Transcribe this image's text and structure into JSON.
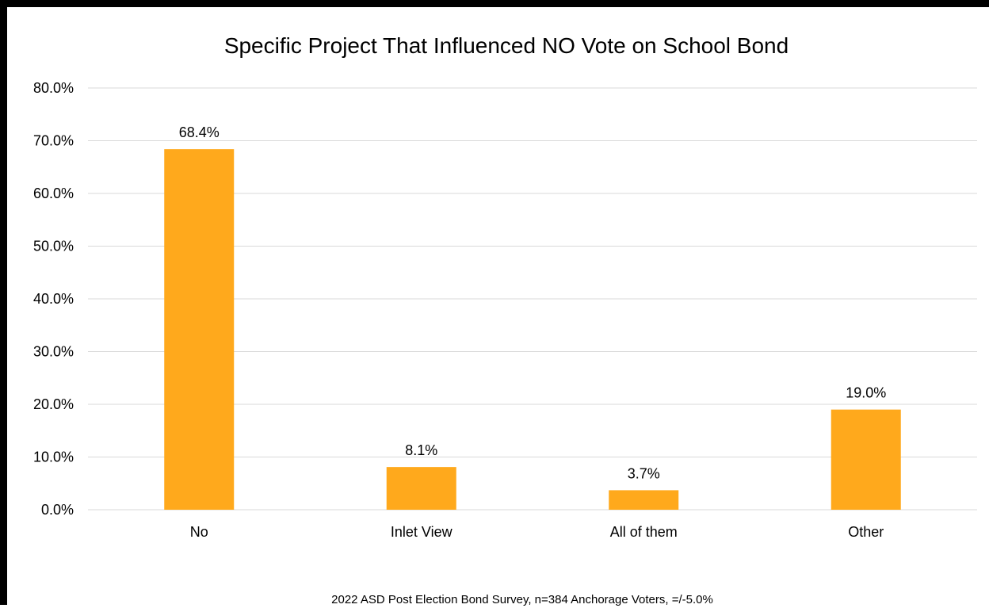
{
  "chart_data": {
    "type": "bar",
    "title": "Specific Project That Influenced NO Vote on School Bond",
    "categories": [
      "No",
      "Inlet View",
      "All of them",
      "Other"
    ],
    "values": [
      68.4,
      8.1,
      3.7,
      19.0
    ],
    "data_labels": [
      "68.4%",
      "8.1%",
      "3.7%",
      "19.0%"
    ],
    "y_ticks": [
      "0.0%",
      "10.0%",
      "20.0%",
      "30.0%",
      "40.0%",
      "50.0%",
      "60.0%",
      "70.0%",
      "80.0%"
    ],
    "ylim": [
      0,
      80
    ],
    "grid": true,
    "bar_color": "#FFA91C",
    "xlabel": "",
    "ylabel": "",
    "footnote": "2022 ASD Post Election Bond Survey, n=384 Anchorage Voters, =/-5.0%"
  }
}
